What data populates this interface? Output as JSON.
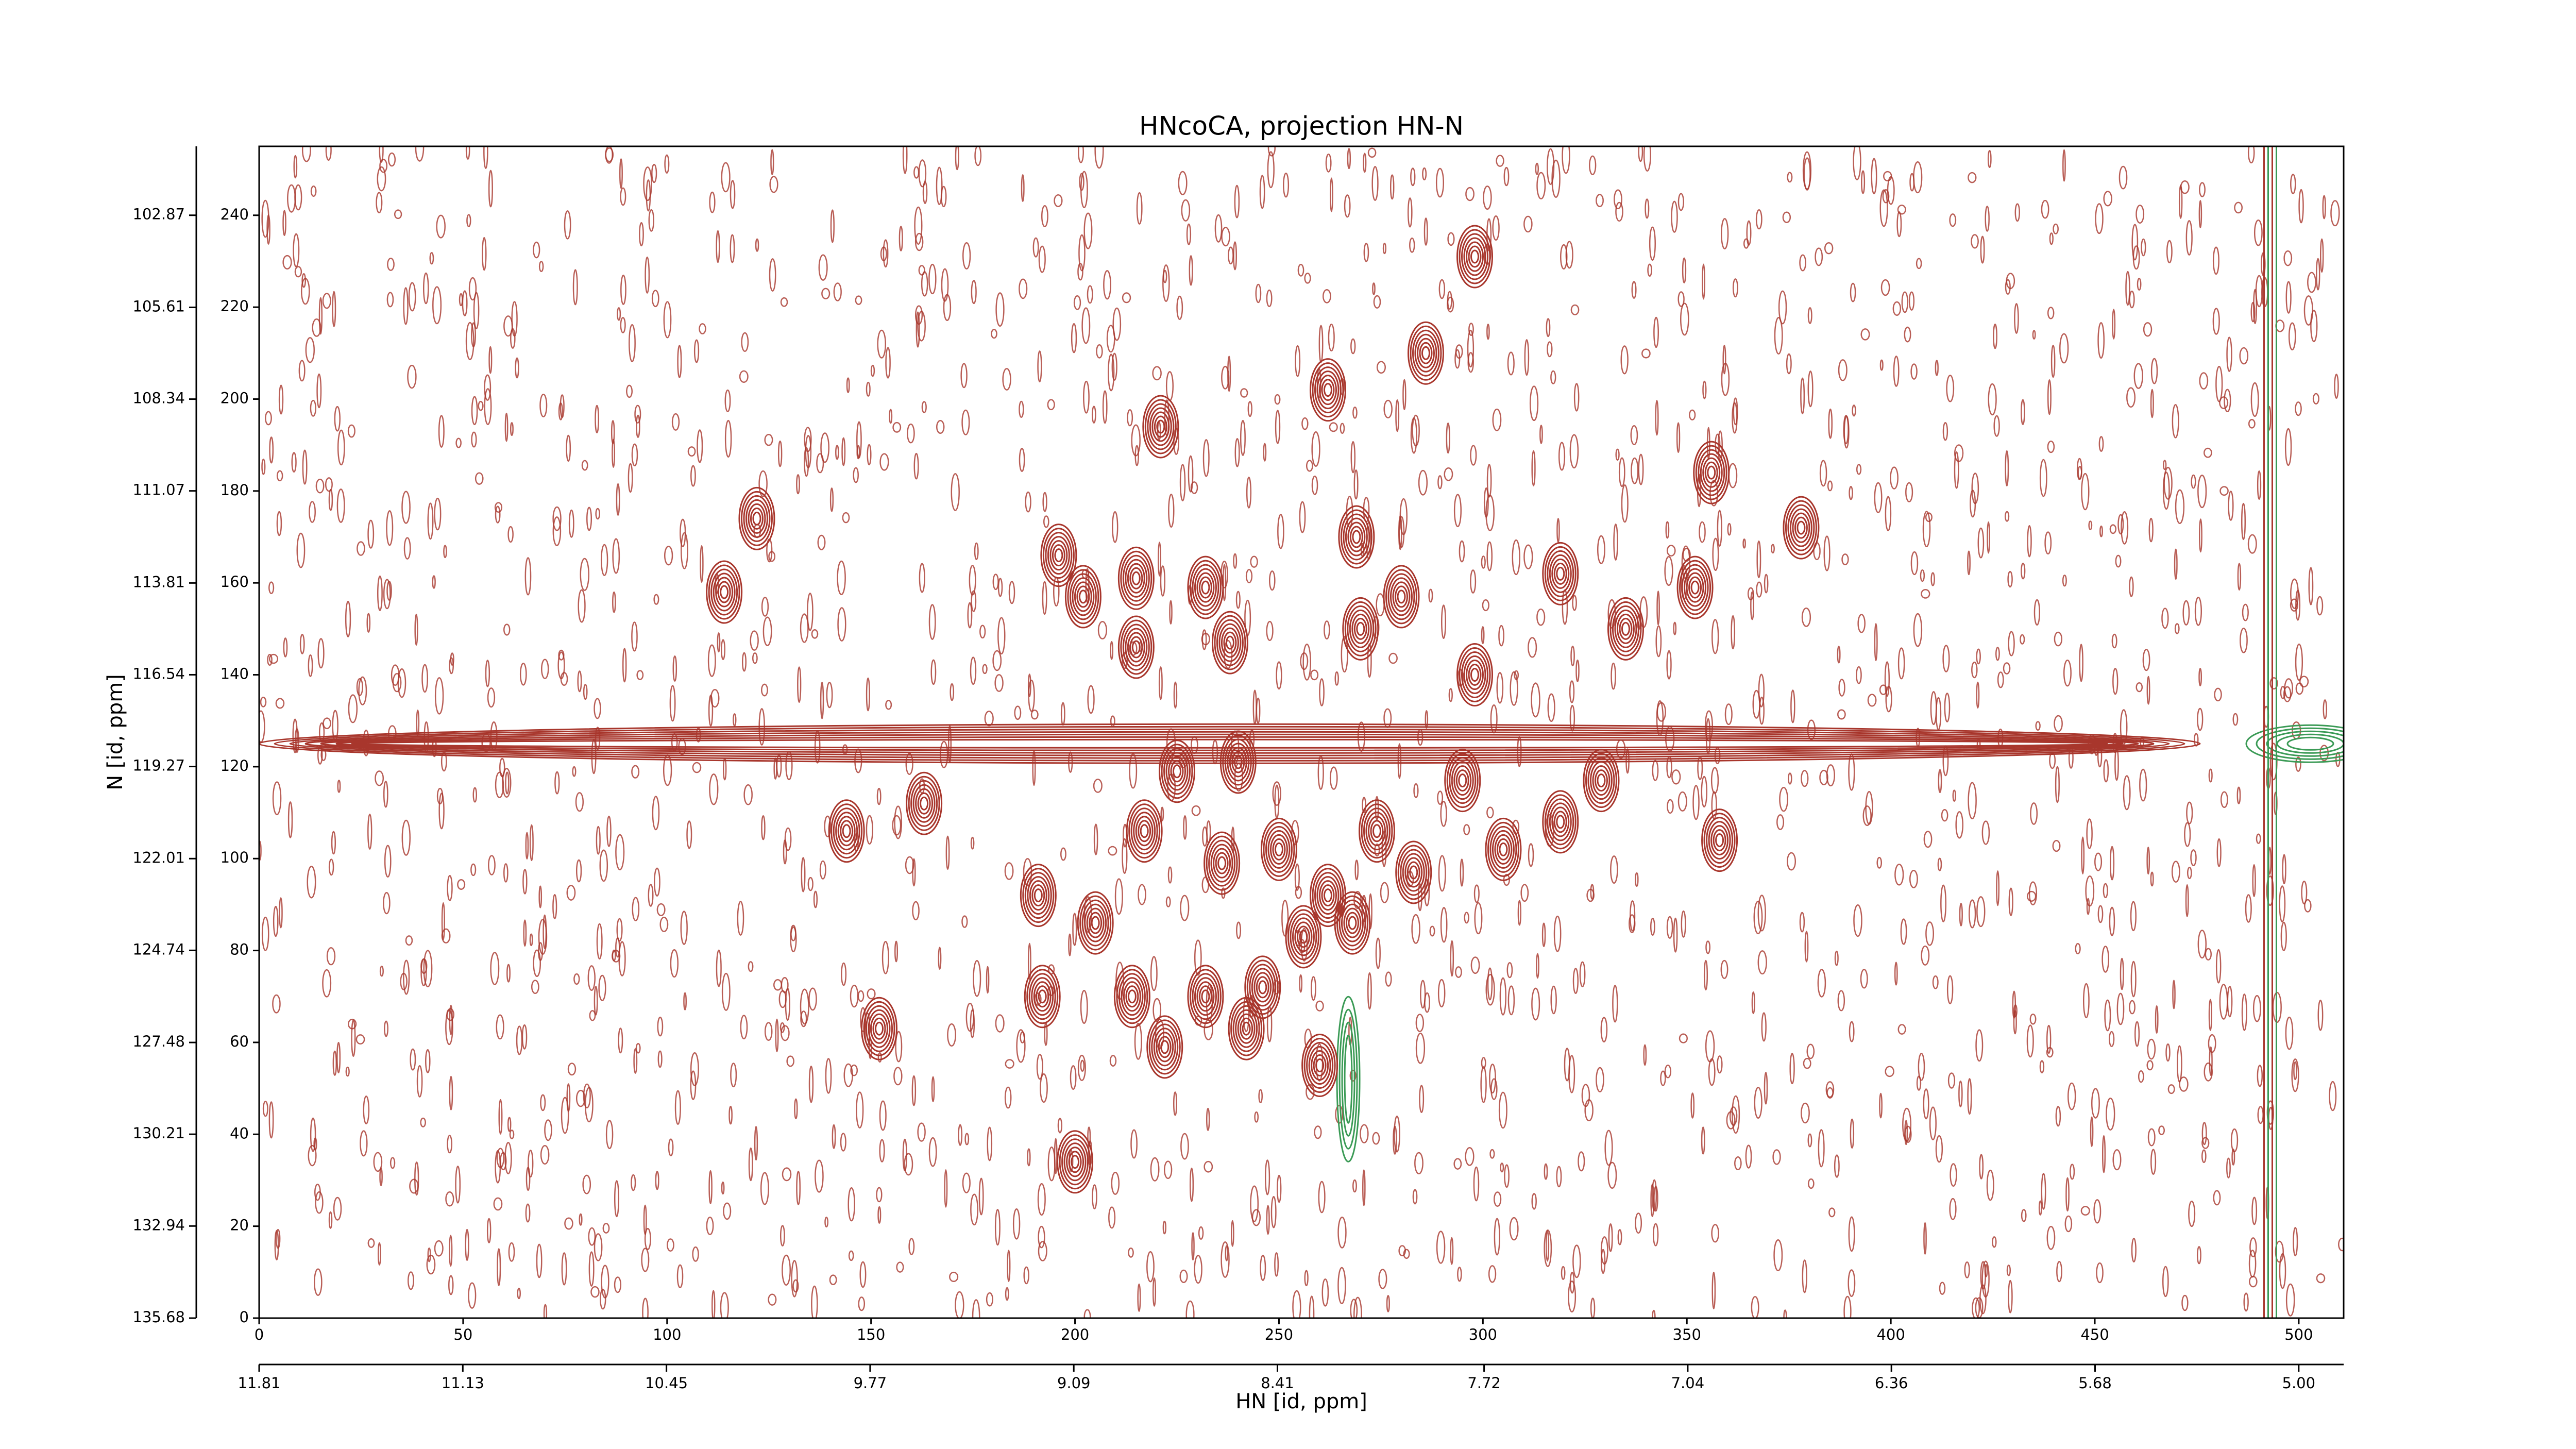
{
  "chart_data": {
    "type": "contour",
    "title": "HNcoCA, projection HN-N",
    "x_label": "HN [id, ppm]",
    "y_label": "N [id, ppm]",
    "xlim": [
      0,
      511
    ],
    "ylim": [
      0,
      255
    ],
    "xticks": [
      0,
      50,
      100,
      150,
      200,
      250,
      300,
      350,
      400,
      450,
      500
    ],
    "yticks": [
      0,
      20,
      40,
      60,
      80,
      100,
      120,
      140,
      160,
      180,
      200,
      220,
      240
    ],
    "x2lim": [
      11.81,
      4.85
    ],
    "x2ticks": [
      11.81,
      11.13,
      10.45,
      9.77,
      9.09,
      8.41,
      7.72,
      7.04,
      6.36,
      5.68,
      {
        "value": 5,
        "label": "5.00"
      }
    ],
    "y2lim": [
      135.68,
      100.82
    ],
    "y2ticks": [
      135.68,
      132.94,
      130.21,
      127.48,
      124.74,
      122.01,
      119.27,
      116.54,
      113.81,
      111.07,
      108.34,
      105.61,
      102.87
    ],
    "color": "#a8362c",
    "negative_color": "#3a9a55",
    "x": [
      298,
      286,
      262,
      221,
      269,
      122,
      114,
      196,
      202,
      215,
      232,
      215,
      238,
      270,
      280,
      298,
      319,
      335,
      356,
      378,
      352,
      144,
      163,
      152,
      191,
      192,
      200,
      205,
      217,
      225,
      236,
      240,
      246,
      250,
      262,
      256,
      260,
      268,
      274,
      283,
      295,
      305,
      319,
      329,
      358,
      214,
      232,
      222,
      242
    ],
    "values": [
      231,
      210,
      202,
      194,
      170,
      174,
      158,
      166,
      157,
      161,
      159,
      146,
      147,
      150,
      157,
      140,
      162,
      150,
      184,
      172,
      159,
      106,
      112,
      63,
      92,
      70,
      34,
      86,
      106,
      119,
      99,
      121,
      72,
      102,
      92,
      83,
      55,
      86,
      106,
      97,
      117,
      102,
      108,
      117,
      104,
      70,
      70,
      59,
      63
    ],
    "ridge_y": 125,
    "streak_x": 493,
    "negative_streak_x": 267
  }
}
